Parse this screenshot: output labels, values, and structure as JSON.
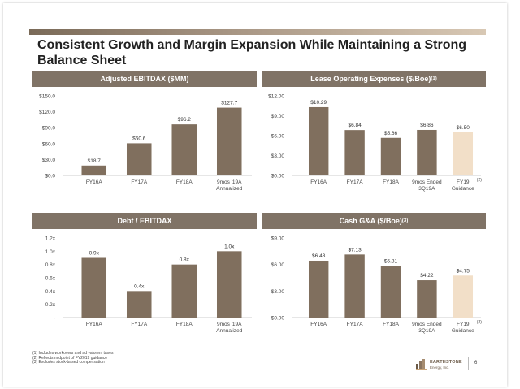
{
  "title": "Consistent Growth and Margin Expansion While Maintaining a Strong Balance Sheet",
  "colors": {
    "bar": "#806f5e",
    "bar_highlight": "#f2dfc8",
    "header_bg": "#807366",
    "accent": "#7a6a58"
  },
  "chart_data": [
    {
      "type": "bar",
      "title": "Adjusted EBITDAX ($MM)",
      "categories": [
        "FY16A",
        "FY17A",
        "FY18A",
        "9mos '19A Annualized"
      ],
      "category_lines": [
        [
          "FY16A"
        ],
        [
          "FY17A"
        ],
        [
          "FY18A"
        ],
        [
          "9mos '19A",
          "Annualized"
        ]
      ],
      "values": [
        18.7,
        60.6,
        96.2,
        127.7
      ],
      "value_labels": [
        "$18.7",
        "$60.6",
        "$96.2",
        "$127.7"
      ],
      "highlight": [
        false,
        false,
        false,
        false
      ],
      "ylim": [
        0,
        150
      ],
      "yticks": [
        0,
        30,
        60,
        90,
        120,
        150
      ],
      "ytick_labels": [
        "$0.0",
        "$30.0",
        "$60.0",
        "$90.0",
        "$120.0",
        "$150.0"
      ],
      "superscript": "",
      "grid": false
    },
    {
      "type": "bar",
      "title": "Lease Operating Expenses ($/Boe)",
      "superscript": "(1)",
      "categories": [
        "FY16A",
        "FY17A",
        "FY18A",
        "9mos Ended 3Q19A",
        "FY19 Guidance"
      ],
      "category_lines": [
        [
          "FY16A"
        ],
        [
          "FY17A"
        ],
        [
          "FY18A"
        ],
        [
          "9mos Ended",
          "3Q19A"
        ],
        [
          "FY19",
          "Guidance"
        ]
      ],
      "category_notes": [
        "",
        "",
        "",
        "",
        "(2)"
      ],
      "values": [
        10.29,
        6.84,
        5.66,
        6.86,
        6.5
      ],
      "value_labels": [
        "$10.29",
        "$6.84",
        "$5.66",
        "$6.86",
        "$6.50"
      ],
      "highlight": [
        false,
        false,
        false,
        false,
        true
      ],
      "ylim": [
        0,
        12
      ],
      "yticks": [
        0,
        3,
        6,
        9,
        12
      ],
      "ytick_labels": [
        "$0.00",
        "$3.00",
        "$6.00",
        "$9.00",
        "$12.00"
      ],
      "grid": false
    },
    {
      "type": "bar",
      "title": "Debt / EBITDAX",
      "superscript": "",
      "categories": [
        "FY16A",
        "FY17A",
        "FY18A",
        "9mos '19A Annualized"
      ],
      "category_lines": [
        [
          "FY16A"
        ],
        [
          "FY17A"
        ],
        [
          "FY18A"
        ],
        [
          "9mos '19A",
          "Annualized"
        ]
      ],
      "values": [
        0.9,
        0.4,
        0.8,
        1.0
      ],
      "value_labels": [
        "0.9x",
        "0.4x",
        "0.8x",
        "1.0x"
      ],
      "highlight": [
        false,
        false,
        false,
        false
      ],
      "ylim": [
        0,
        1.2
      ],
      "yticks": [
        0,
        0.2,
        0.4,
        0.6,
        0.8,
        1.0,
        1.2
      ],
      "ytick_labels": [
        "-",
        "0.2x",
        "0.4x",
        "0.6x",
        "0.8x",
        "1.0x",
        "1.2x"
      ],
      "grid": false
    },
    {
      "type": "bar",
      "title": "Cash G&A ($/Boe)",
      "superscript": "(3)",
      "categories": [
        "FY16A",
        "FY17A",
        "FY18A",
        "9mos Ended 3Q19A",
        "FY19 Guidance"
      ],
      "category_lines": [
        [
          "FY16A"
        ],
        [
          "FY17A"
        ],
        [
          "FY18A"
        ],
        [
          "9mos Ended",
          "3Q19A"
        ],
        [
          "FY19",
          "Guidance"
        ]
      ],
      "category_notes": [
        "",
        "",
        "",
        "",
        "(2)"
      ],
      "values": [
        6.43,
        7.13,
        5.81,
        4.22,
        4.75
      ],
      "value_labels": [
        "$6.43",
        "$7.13",
        "$5.81",
        "$4.22",
        "$4.75"
      ],
      "highlight": [
        false,
        false,
        false,
        false,
        true
      ],
      "ylim": [
        0,
        9
      ],
      "yticks": [
        0,
        3,
        6,
        9
      ],
      "ytick_labels": [
        "$0.00",
        "$3.00",
        "$6.00",
        "$9.00"
      ],
      "grid": false
    }
  ],
  "footnotes": [
    "(1)  Includes workovers and ad valorem taxes",
    "(2)  Reflects midpoint of FY2019 guidance",
    "(3)  Excludes stock-based compensation"
  ],
  "logo": {
    "name": "EARTHSTONE",
    "sub": "Energy, Inc."
  },
  "page_number": "6"
}
